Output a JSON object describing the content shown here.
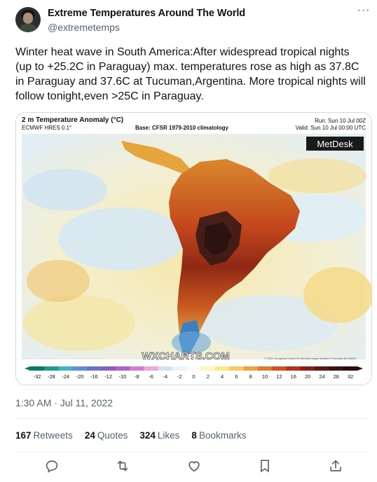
{
  "author": {
    "display_name": "Extreme Temperatures Around The World",
    "handle": "@extremetemps"
  },
  "tweet": {
    "text": "Winter heat wave in South America:After widespread tropical nights (up to +25.2C in Paraguay) max. temperatures rose as high as 37.8C in Paraguay and  37.6C at Tucuman,Argentina. More tropical nights will follow tonight,even >25C in Paraguay.",
    "timestamp": "1:30 AM · Jul 11, 2022"
  },
  "media": {
    "title": "2 m Temperature Anomaly (°C)",
    "model": "ECMWF HRES 0.1°",
    "base": "Base: CFSR 1979-2010 climatology",
    "run": "Run: Sun 10 Jul 00Z",
    "valid": "Valid: Sun 10 Jul 00:00 UTC",
    "brand": "MetDesk",
    "watermark": "WXCHARTS.COM",
    "credit": "© 2022 European Centre for Medium-range Weather Forecasts (ECMWF)",
    "scale_labels": [
      "-32",
      "-28",
      "-24",
      "-20",
      "-16",
      "-12",
      "-10",
      "-8",
      "-6",
      "-4",
      "-2",
      "0",
      "2",
      "4",
      "6",
      "8",
      "10",
      "12",
      "16",
      "20",
      "24",
      "28",
      "32"
    ],
    "scale_colors": [
      "#0b7a5e",
      "#1a9d8b",
      "#3fb6c7",
      "#5e8ed8",
      "#6a6fd2",
      "#8a5cc4",
      "#b060c8",
      "#d77ad2",
      "#f0a6e0",
      "#cfe3f5",
      "#eaf4fb",
      "#fbfbf4",
      "#fff4c2",
      "#fde58a",
      "#fbc95b",
      "#f3a03b",
      "#e6762a",
      "#d6501e",
      "#b8301a",
      "#8c1e16",
      "#5e1812",
      "#3e1212",
      "#2a0d0d"
    ],
    "colors": {
      "ocean_warm": "#f7e9a8",
      "ocean_neutral": "#eaf3f8",
      "ocean_cool": "#cfe5f3",
      "land_hot": "#c7451c",
      "land_very_hot": "#7a2314",
      "land_extreme": "#3b1a16",
      "land_cold": "#3a7fbf"
    }
  },
  "stats": {
    "retweets_count": "167",
    "retweets_label": "Retweets",
    "quotes_count": "24",
    "quotes_label": "Quotes",
    "likes_count": "324",
    "likes_label": "Likes",
    "bookmarks_count": "8",
    "bookmarks_label": "Bookmarks"
  },
  "actions": {
    "reply_icon": "reply-icon",
    "retweet_icon": "retweet-icon",
    "like_icon": "heart-icon",
    "bookmark_icon": "bookmark-icon",
    "share_icon": "share-icon"
  }
}
